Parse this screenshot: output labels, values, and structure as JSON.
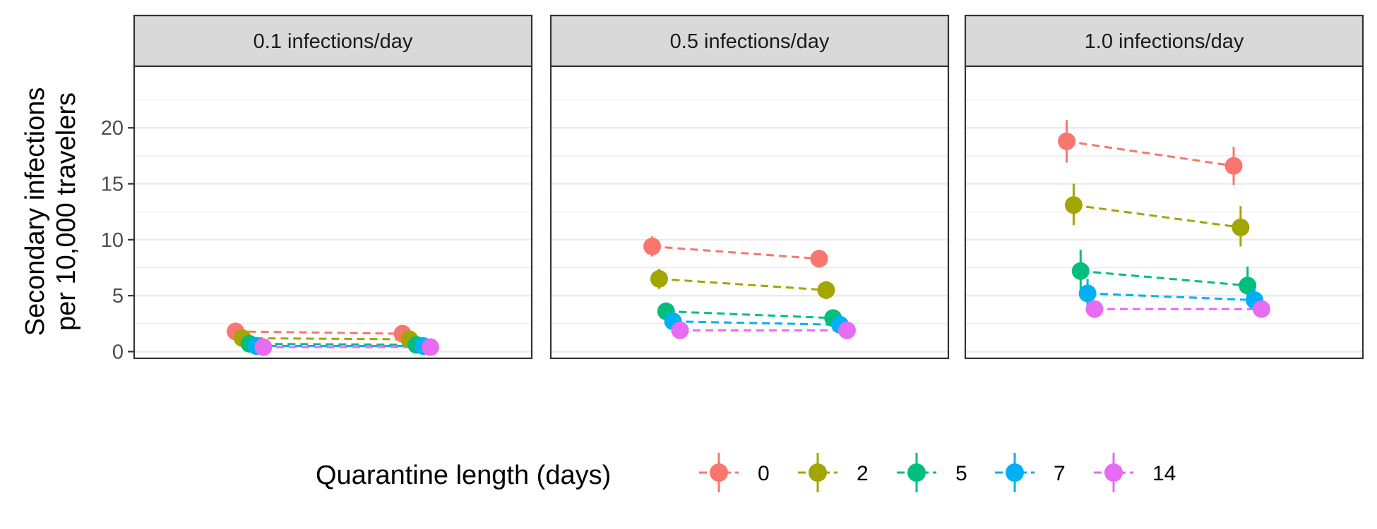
{
  "chart_data": {
    "type": "scatter",
    "ylabel_lines": [
      "Secondary infections",
      "per 10,000 travelers"
    ],
    "ylim": [
      -0.6,
      25.5
    ],
    "y_ticks": [
      0,
      5,
      10,
      15,
      20
    ],
    "y_tick_labels": [
      "0",
      "5",
      "10",
      "15",
      "20"
    ],
    "grid": true,
    "legend": {
      "title": "Quarantine length (days)",
      "placement": "bottom"
    },
    "series": [
      {
        "name": "0",
        "color": "#F8766D"
      },
      {
        "name": "2",
        "color": "#A3A500"
      },
      {
        "name": "5",
        "color": "#00BF7D"
      },
      {
        "name": "7",
        "color": "#00B0F6"
      },
      {
        "name": "14",
        "color": "#E76BF3"
      }
    ],
    "panels": [
      {
        "title": "0.1 infections/day",
        "points": [
          {
            "series": "0",
            "group": 1,
            "y": 1.8,
            "lo": 1.3,
            "hi": 2.3
          },
          {
            "series": "0",
            "group": 2,
            "y": 1.6,
            "lo": 1.1,
            "hi": 2.1
          },
          {
            "series": "2",
            "group": 1,
            "y": 1.2,
            "lo": 0.8,
            "hi": 1.6
          },
          {
            "series": "2",
            "group": 2,
            "y": 1.1,
            "lo": 0.7,
            "hi": 1.5
          },
          {
            "series": "5",
            "group": 1,
            "y": 0.7,
            "lo": 0.4,
            "hi": 1.0
          },
          {
            "series": "5",
            "group": 2,
            "y": 0.6,
            "lo": 0.3,
            "hi": 0.9
          },
          {
            "series": "7",
            "group": 1,
            "y": 0.5,
            "lo": 0.2,
            "hi": 0.8
          },
          {
            "series": "7",
            "group": 2,
            "y": 0.5,
            "lo": 0.2,
            "hi": 0.8
          },
          {
            "series": "14",
            "group": 1,
            "y": 0.4,
            "lo": 0.2,
            "hi": 0.6
          },
          {
            "series": "14",
            "group": 2,
            "y": 0.4,
            "lo": 0.2,
            "hi": 0.6
          }
        ]
      },
      {
        "title": "0.5 infections/day",
        "points": [
          {
            "series": "0",
            "group": 1,
            "y": 9.4,
            "lo": 8.5,
            "hi": 10.3
          },
          {
            "series": "0",
            "group": 2,
            "y": 8.3,
            "lo": 7.5,
            "hi": 9.1
          },
          {
            "series": "2",
            "group": 1,
            "y": 6.5,
            "lo": 5.6,
            "hi": 7.4
          },
          {
            "series": "2",
            "group": 2,
            "y": 5.5,
            "lo": 4.7,
            "hi": 6.3
          },
          {
            "series": "5",
            "group": 1,
            "y": 3.6,
            "lo": 2.8,
            "hi": 4.4
          },
          {
            "series": "5",
            "group": 2,
            "y": 3.0,
            "lo": 2.3,
            "hi": 3.7
          },
          {
            "series": "7",
            "group": 1,
            "y": 2.7,
            "lo": 2.1,
            "hi": 3.3
          },
          {
            "series": "7",
            "group": 2,
            "y": 2.4,
            "lo": 1.8,
            "hi": 3.0
          },
          {
            "series": "14",
            "group": 1,
            "y": 1.9,
            "lo": 1.4,
            "hi": 2.4
          },
          {
            "series": "14",
            "group": 2,
            "y": 1.9,
            "lo": 1.4,
            "hi": 2.4
          }
        ]
      },
      {
        "title": "1.0 infections/day",
        "points": [
          {
            "series": "0",
            "group": 1,
            "y": 18.8,
            "lo": 16.9,
            "hi": 20.7
          },
          {
            "series": "0",
            "group": 2,
            "y": 16.6,
            "lo": 14.9,
            "hi": 18.3
          },
          {
            "series": "2",
            "group": 1,
            "y": 13.1,
            "lo": 11.3,
            "hi": 15.0
          },
          {
            "series": "2",
            "group": 2,
            "y": 11.1,
            "lo": 9.4,
            "hi": 13.0
          },
          {
            "series": "5",
            "group": 1,
            "y": 7.2,
            "lo": 5.6,
            "hi": 9.1
          },
          {
            "series": "5",
            "group": 2,
            "y": 5.9,
            "lo": 4.4,
            "hi": 7.6
          },
          {
            "series": "7",
            "group": 1,
            "y": 5.2,
            "lo": 3.9,
            "hi": 6.5
          },
          {
            "series": "7",
            "group": 2,
            "y": 4.6,
            "lo": 3.5,
            "hi": 5.8
          },
          {
            "series": "14",
            "group": 1,
            "y": 3.8,
            "lo": 3.1,
            "hi": 4.5
          },
          {
            "series": "14",
            "group": 2,
            "y": 3.8,
            "lo": 3.1,
            "hi": 4.5
          }
        ]
      }
    ]
  }
}
